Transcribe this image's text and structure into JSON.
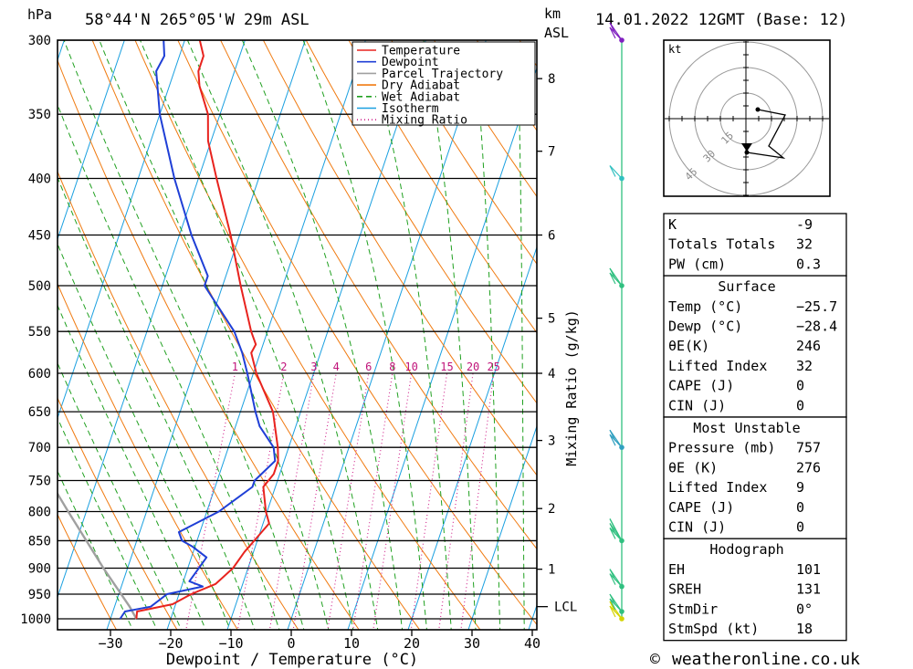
{
  "header": {
    "hpa_unit": "hPa",
    "location": "58°44'N  265°05'W  29m  ASL",
    "km_unit": "km",
    "asl_label": "ASL",
    "datetime": "14.01.2022  12GMT  (Base: 12)"
  },
  "legend": [
    {
      "label": "Temperature",
      "color": "#e8231e",
      "dash": ""
    },
    {
      "label": "Dewpoint",
      "color": "#1f3fd6",
      "dash": ""
    },
    {
      "label": "Parcel Trajectory",
      "color": "#a0a0a0",
      "dash": ""
    },
    {
      "label": "Dry Adiabat",
      "color": "#f07a10",
      "dash": ""
    },
    {
      "label": "Wet Adiabat",
      "color": "#20a020",
      "dash": "6,4"
    },
    {
      "label": "Isotherm",
      "color": "#1aa0e0",
      "dash": ""
    },
    {
      "label": "Mixing Ratio",
      "color": "#d0208a",
      "dash": "1,3"
    }
  ],
  "chart_data": {
    "type": "skew-t",
    "title": "58°44'N 265°05'W 29m ASL  14.01.2022 12GMT (Base: 12)",
    "xlabel": "Dewpoint / Temperature (°C)",
    "ylabel": "hPa",
    "right_label": "Mixing Ratio (g/kg)",
    "x_ticks": [
      -30,
      -20,
      -10,
      0,
      10,
      20,
      30,
      40
    ],
    "x_tick_labels": [
      "−30",
      "−20",
      "−10",
      "0",
      "10",
      "20",
      "30",
      "40"
    ],
    "pressure_levels": [
      300,
      350,
      400,
      450,
      500,
      550,
      600,
      650,
      700,
      750,
      800,
      850,
      900,
      950,
      1000
    ],
    "km_ticks": [
      {
        "km": 1,
        "p": 902
      },
      {
        "km": 2,
        "p": 795
      },
      {
        "km": 3,
        "p": 690
      },
      {
        "km": 4,
        "p": 600
      },
      {
        "km": 5,
        "p": 535
      },
      {
        "km": 6,
        "p": 450
      },
      {
        "km": 7,
        "p": 378
      },
      {
        "km": 8,
        "p": 325
      }
    ],
    "lcl": {
      "label": "LCL",
      "p": 975
    },
    "mixing_ratio_labels": [
      "1",
      "2",
      "3",
      "4",
      "6",
      "8",
      "10",
      "15",
      "20",
      "25"
    ],
    "mixing_ratio_values": [
      1,
      2,
      3,
      4,
      6,
      8,
      10,
      15,
      20,
      25
    ],
    "temperature": [
      {
        "p": 1000,
        "t": -25.7
      },
      {
        "p": 985,
        "t": -26.0
      },
      {
        "p": 970,
        "t": -20.5
      },
      {
        "p": 950,
        "t": -18.0
      },
      {
        "p": 930,
        "t": -14.5
      },
      {
        "p": 900,
        "t": -12.5
      },
      {
        "p": 870,
        "t": -11.5
      },
      {
        "p": 850,
        "t": -10.5
      },
      {
        "p": 820,
        "t": -9.0
      },
      {
        "p": 800,
        "t": -10.2
      },
      {
        "p": 760,
        "t": -12.0
      },
      {
        "p": 740,
        "t": -11.0
      },
      {
        "p": 720,
        "t": -11.0
      },
      {
        "p": 700,
        "t": -11.8
      },
      {
        "p": 650,
        "t": -14.6
      },
      {
        "p": 600,
        "t": -19.5
      },
      {
        "p": 575,
        "t": -21.5
      },
      {
        "p": 565,
        "t": -21.2
      },
      {
        "p": 550,
        "t": -22.7
      },
      {
        "p": 500,
        "t": -27.0
      },
      {
        "p": 450,
        "t": -31.5
      },
      {
        "p": 400,
        "t": -37.0
      },
      {
        "p": 370,
        "t": -40.5
      },
      {
        "p": 350,
        "t": -42.0
      },
      {
        "p": 330,
        "t": -45.0
      },
      {
        "p": 320,
        "t": -46.0
      },
      {
        "p": 310,
        "t": -46.0
      },
      {
        "p": 300,
        "t": -47.5
      }
    ],
    "dewpoint": [
      {
        "p": 1000,
        "t": -28.4
      },
      {
        "p": 985,
        "t": -28.0
      },
      {
        "p": 975,
        "t": -24.0
      },
      {
        "p": 950,
        "t": -22.0
      },
      {
        "p": 935,
        "t": -16.5
      },
      {
        "p": 925,
        "t": -19.0
      },
      {
        "p": 910,
        "t": -18.5
      },
      {
        "p": 880,
        "t": -17.5
      },
      {
        "p": 860,
        "t": -20.5
      },
      {
        "p": 850,
        "t": -22.5
      },
      {
        "p": 835,
        "t": -23.5
      },
      {
        "p": 800,
        "t": -18.0
      },
      {
        "p": 760,
        "t": -13.8
      },
      {
        "p": 750,
        "t": -13.8
      },
      {
        "p": 720,
        "t": -11.5
      },
      {
        "p": 700,
        "t": -12.5
      },
      {
        "p": 670,
        "t": -16.0
      },
      {
        "p": 650,
        "t": -17.5
      },
      {
        "p": 600,
        "t": -21.0
      },
      {
        "p": 575,
        "t": -23.0
      },
      {
        "p": 550,
        "t": -25.5
      },
      {
        "p": 500,
        "t": -33.0
      },
      {
        "p": 490,
        "t": -33.0
      },
      {
        "p": 450,
        "t": -38.0
      },
      {
        "p": 400,
        "t": -44.0
      },
      {
        "p": 350,
        "t": -50.0
      },
      {
        "p": 320,
        "t": -53.0
      },
      {
        "p": 310,
        "t": -52.5
      },
      {
        "p": 300,
        "t": -53.5
      }
    ],
    "parcel": [
      {
        "p": 1000,
        "t": -25.7
      },
      {
        "p": 975,
        "t": -27.5
      },
      {
        "p": 900,
        "t": -34.0
      },
      {
        "p": 800,
        "t": -43.0
      },
      {
        "p": 700,
        "t": -53.0
      }
    ],
    "wind_profile": [
      {
        "p": 1000,
        "speed_kt": 15,
        "color": "#d4d400"
      },
      {
        "p": 985,
        "speed_kt": 15,
        "color": "#30c080"
      },
      {
        "p": 935,
        "speed_kt": 15,
        "color": "#30c080"
      },
      {
        "p": 850,
        "speed_kt": 25,
        "color": "#30c080"
      },
      {
        "p": 700,
        "speed_kt": 20,
        "color": "#30a0c0"
      },
      {
        "p": 500,
        "speed_kt": 15,
        "color": "#30c080"
      },
      {
        "p": 400,
        "speed_kt": 10,
        "color": "#30c0c0"
      },
      {
        "p": 300,
        "speed_kt": 20,
        "color": "#8020c0"
      }
    ],
    "hodograph": {
      "unit": "kt",
      "ring_labels": [
        "15",
        "30",
        "45"
      ]
    }
  },
  "indices": {
    "rows": [
      {
        "label": "K",
        "value": "-9"
      },
      {
        "label": "Totals Totals",
        "value": "32"
      },
      {
        "label": "PW (cm)",
        "value": "0.3"
      }
    ]
  },
  "surface": {
    "title": "Surface",
    "rows": [
      {
        "label": "Temp (°C)",
        "value": "−25.7"
      },
      {
        "label": "Dewp (°C)",
        "value": "−28.4"
      },
      {
        "label": "θE(K)",
        "value": "246"
      },
      {
        "label": "Lifted Index",
        "value": "32"
      },
      {
        "label": "CAPE (J)",
        "value": "0"
      },
      {
        "label": "CIN (J)",
        "value": "0"
      }
    ]
  },
  "most_unstable": {
    "title": "Most Unstable",
    "rows": [
      {
        "label": "Pressure (mb)",
        "value": "757"
      },
      {
        "label": "θE (K)",
        "value": "276"
      },
      {
        "label": "Lifted Index",
        "value": "9"
      },
      {
        "label": "CAPE (J)",
        "value": "0"
      },
      {
        "label": "CIN (J)",
        "value": "0"
      }
    ]
  },
  "hodograph_table": {
    "title": "Hodograph",
    "rows": [
      {
        "label": "EH",
        "value": "101"
      },
      {
        "label": "SREH",
        "value": "131"
      },
      {
        "label": "StmDir",
        "value": "0°"
      },
      {
        "label": "StmSpd (kt)",
        "value": "18"
      }
    ]
  },
  "footer": {
    "copyright_symbol": "©",
    "site": "weatheronline.co.uk"
  }
}
